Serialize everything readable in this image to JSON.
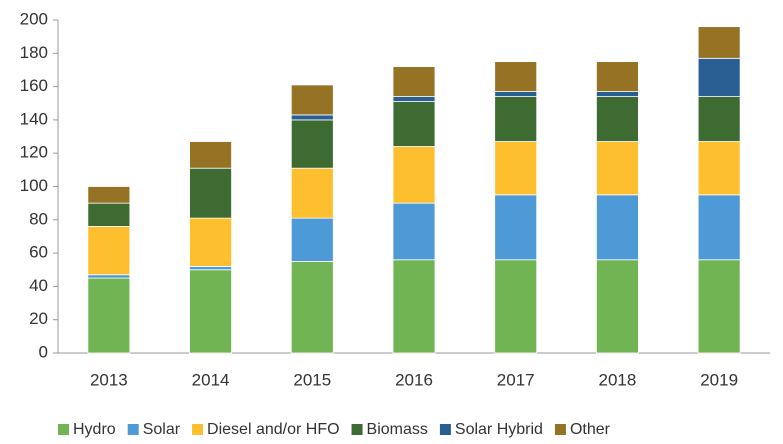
{
  "chart_data": {
    "type": "stacked_bar",
    "categories": [
      "2013",
      "2014",
      "2015",
      "2016",
      "2017",
      "2018",
      "2019"
    ],
    "series": [
      {
        "name": "Hydro",
        "color": "#70b453",
        "values": [
          45,
          50,
          55,
          56,
          56,
          56,
          56
        ]
      },
      {
        "name": "Solar",
        "color": "#4e9ad6",
        "values": [
          2,
          2,
          26,
          34,
          39,
          39,
          39
        ]
      },
      {
        "name": "Diesel and/or HFO",
        "color": "#fdbf2d",
        "values": [
          29,
          29,
          30,
          34,
          32,
          32,
          32
        ]
      },
      {
        "name": "Biomass",
        "color": "#3d6b32",
        "values": [
          14,
          30,
          29,
          27,
          27,
          27,
          27
        ]
      },
      {
        "name": "Solar Hybrid",
        "color": "#2a5f93",
        "values": [
          0,
          0,
          3,
          3,
          3,
          3,
          23
        ]
      },
      {
        "name": "Other",
        "color": "#967224",
        "values": [
          10,
          16,
          18,
          18,
          18,
          18,
          19
        ]
      }
    ],
    "ylim": [
      0,
      200
    ],
    "yticks": [
      0,
      20,
      40,
      60,
      80,
      100,
      120,
      140,
      160,
      180,
      200
    ],
    "legend": "bottom"
  }
}
